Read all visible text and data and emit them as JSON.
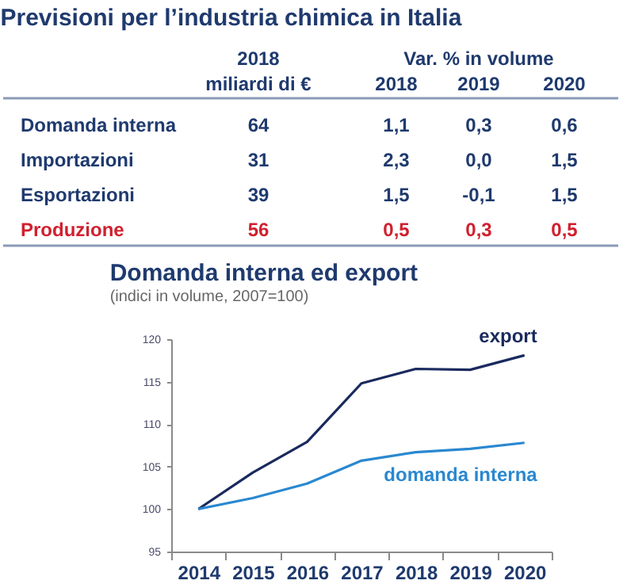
{
  "chart_data": [
    {
      "type": "other",
      "title": "Previsioni per l’industria chimica in Italia",
      "annotations": [
        "Var. % in volume"
      ],
      "categories": [
        "Domanda interna",
        "Importazioni",
        "Esportazioni",
        "Produzione"
      ],
      "colors": [
        "#1f3a6e",
        "#1f3a6e",
        "#1f3a6e",
        "#d0202e"
      ],
      "series": [
        {
          "name": "2018 miliardi di €",
          "values": [
            64,
            31,
            39,
            56
          ],
          "value_labels": [
            "64",
            "31",
            "39",
            "56"
          ]
        },
        {
          "name": "2018",
          "values": [
            1.1,
            2.3,
            1.5,
            0.5
          ],
          "value_labels": [
            "1,1",
            "2,3",
            "1,5",
            "0,5"
          ]
        },
        {
          "name": "2019",
          "values": [
            0.3,
            0.0,
            -0.1,
            0.3
          ],
          "value_labels": [
            "0,3",
            "0,0",
            "-0,1",
            "0,3"
          ]
        },
        {
          "name": "2020",
          "values": [
            0.6,
            1.5,
            1.5,
            0.5
          ],
          "value_labels": [
            "0,6",
            "1,5",
            "1,5",
            "0,5"
          ]
        }
      ]
    },
    {
      "type": "line",
      "title": "Domanda interna ed export",
      "subtitle": "(indici in volume, 2007=100)",
      "categories": [
        "2014",
        "2015",
        "2016",
        "2017",
        "2018",
        "2019",
        "2020"
      ],
      "ylim": [
        95,
        120
      ],
      "yticks": [
        95,
        100,
        105,
        110,
        115,
        120
      ],
      "grid": false,
      "legend": false,
      "series": [
        {
          "name": "export",
          "color": "#1a2a5e",
          "values": [
            100,
            104.3,
            107.9,
            114.8,
            116.5,
            116.4,
            118.1
          ]
        },
        {
          "name": "domanda interna",
          "color": "#2a88d0",
          "values": [
            100,
            101.3,
            103.0,
            105.7,
            106.7,
            107.1,
            107.8
          ]
        }
      ]
    }
  ]
}
